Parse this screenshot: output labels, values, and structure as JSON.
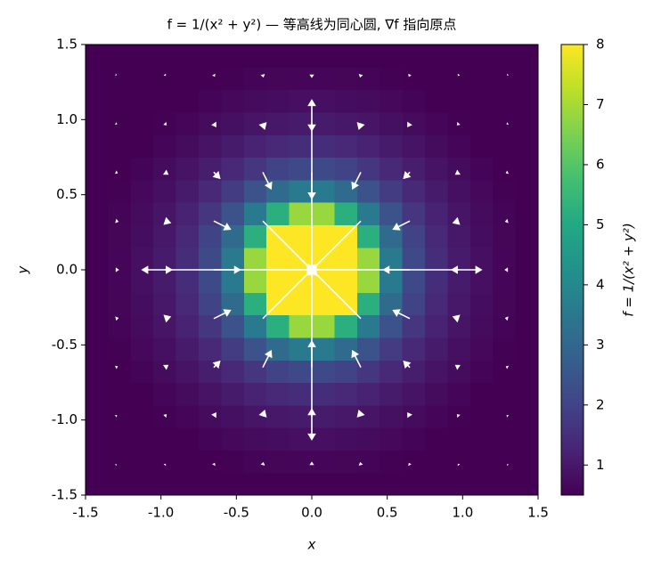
{
  "chart_data": {
    "type": "heatmap",
    "title": "f = 1/(x² + y²) — 等高线为同心圆, ∇f 指向原点",
    "xlabel": "x",
    "ylabel": "y",
    "xlim": [
      -1.5,
      1.5
    ],
    "ylim": [
      -1.5,
      1.5
    ],
    "xticks": [
      -1.5,
      {
        "value": -1,
        "label": "-1.0"
      },
      -0.5,
      {
        "value": 0,
        "label": "0.0"
      },
      0.5,
      {
        "value": 1,
        "label": "1.0"
      },
      1.5
    ],
    "yticks": [
      -1.5,
      {
        "value": -1,
        "label": "-1.0"
      },
      -0.5,
      {
        "value": 0,
        "label": "0.0"
      },
      0.5,
      {
        "value": 1,
        "label": "1.0"
      },
      1.5
    ],
    "colormap": "viridis",
    "clim": [
      0.5,
      8
    ],
    "colorbar_label": "f = 1/(x² + y²)",
    "colorbar_ticks": [
      1,
      2,
      3,
      4,
      5,
      6,
      7,
      8
    ],
    "z": [
      [
        0.25,
        0.27,
        0.3,
        0.34,
        0.37,
        0.4,
        0.43,
        0.46,
        0.48,
        0.49,
        0.49,
        0.48,
        0.46,
        0.43,
        0.4,
        0.37,
        0.34,
        0.3,
        0.27,
        0.25
      ],
      [
        0.27,
        0.31,
        0.35,
        0.39,
        0.43,
        0.48,
        0.53,
        0.57,
        0.6,
        0.61,
        0.61,
        0.6,
        0.57,
        0.53,
        0.48,
        0.43,
        0.39,
        0.35,
        0.31,
        0.27
      ],
      [
        0.3,
        0.35,
        0.4,
        0.45,
        0.51,
        0.58,
        0.65,
        0.71,
        0.76,
        0.79,
        0.79,
        0.76,
        0.71,
        0.65,
        0.58,
        0.51,
        0.45,
        0.4,
        0.35,
        0.3
      ],
      [
        0.34,
        0.39,
        0.45,
        0.53,
        0.61,
        0.71,
        0.82,
        0.92,
        1.0,
        1.05,
        1.05,
        1.0,
        0.92,
        0.82,
        0.71,
        0.61,
        0.53,
        0.45,
        0.39,
        0.34
      ],
      [
        0.37,
        0.43,
        0.51,
        0.61,
        0.73,
        0.88,
        1.05,
        1.22,
        1.37,
        1.46,
        1.46,
        1.37,
        1.22,
        1.05,
        0.88,
        0.73,
        0.61,
        0.51,
        0.43,
        0.37
      ],
      [
        0.4,
        0.48,
        0.58,
        0.71,
        0.88,
        1.1,
        1.37,
        1.68,
        1.98,
        2.17,
        2.17,
        1.98,
        1.68,
        1.37,
        1.1,
        0.88,
        0.71,
        0.58,
        0.48,
        0.4
      ],
      [
        0.43,
        0.53,
        0.65,
        0.82,
        1.05,
        1.37,
        1.81,
        2.4,
        3.07,
        3.56,
        3.56,
        3.07,
        2.4,
        1.81,
        1.37,
        1.05,
        0.82,
        0.65,
        0.53,
        0.43
      ],
      [
        0.46,
        0.57,
        0.71,
        0.92,
        1.22,
        1.68,
        2.4,
        3.56,
        5.23,
        6.84,
        6.84,
        5.23,
        3.56,
        2.4,
        1.68,
        1.22,
        0.92,
        0.71,
        0.57,
        0.46
      ],
      [
        0.48,
        0.6,
        0.76,
        1.0,
        1.37,
        1.98,
        3.07,
        5.23,
        9.88,
        17.78,
        17.78,
        9.88,
        5.23,
        3.07,
        1.98,
        1.37,
        1.0,
        0.76,
        0.6,
        0.48
      ],
      [
        0.49,
        0.61,
        0.79,
        1.05,
        1.46,
        2.17,
        3.56,
        6.84,
        17.78,
        88.89,
        88.89,
        17.78,
        6.84,
        3.56,
        2.17,
        1.46,
        1.05,
        0.79,
        0.61,
        0.49
      ],
      [
        0.49,
        0.61,
        0.79,
        1.05,
        1.46,
        2.17,
        3.56,
        6.84,
        17.78,
        88.89,
        88.89,
        17.78,
        6.84,
        3.56,
        2.17,
        1.46,
        1.05,
        0.79,
        0.61,
        0.49
      ],
      [
        0.48,
        0.6,
        0.76,
        1.0,
        1.37,
        1.98,
        3.07,
        5.23,
        9.88,
        17.78,
        17.78,
        9.88,
        5.23,
        3.07,
        1.98,
        1.37,
        1.0,
        0.76,
        0.6,
        0.48
      ],
      [
        0.46,
        0.57,
        0.71,
        0.92,
        1.22,
        1.68,
        2.4,
        3.56,
        5.23,
        6.84,
        6.84,
        5.23,
        3.56,
        2.4,
        1.68,
        1.22,
        0.92,
        0.71,
        0.57,
        0.46
      ],
      [
        0.43,
        0.53,
        0.65,
        0.82,
        1.05,
        1.37,
        1.81,
        2.4,
        3.07,
        3.56,
        3.56,
        3.07,
        2.4,
        1.81,
        1.37,
        1.05,
        0.82,
        0.65,
        0.53,
        0.43
      ],
      [
        0.4,
        0.48,
        0.58,
        0.71,
        0.88,
        1.1,
        1.37,
        1.68,
        1.98,
        2.17,
        2.17,
        1.98,
        1.68,
        1.37,
        1.1,
        0.88,
        0.71,
        0.58,
        0.48,
        0.4
      ],
      [
        0.37,
        0.43,
        0.51,
        0.61,
        0.73,
        0.88,
        1.05,
        1.22,
        1.37,
        1.46,
        1.46,
        1.37,
        1.22,
        1.05,
        0.88,
        0.73,
        0.61,
        0.51,
        0.43,
        0.37
      ],
      [
        0.34,
        0.39,
        0.45,
        0.53,
        0.61,
        0.71,
        0.82,
        0.92,
        1.0,
        1.05,
        1.05,
        1.0,
        0.92,
        0.82,
        0.71,
        0.61,
        0.53,
        0.45,
        0.39,
        0.34
      ],
      [
        0.3,
        0.35,
        0.4,
        0.45,
        0.51,
        0.58,
        0.65,
        0.71,
        0.76,
        0.79,
        0.79,
        0.76,
        0.71,
        0.65,
        0.58,
        0.51,
        0.45,
        0.4,
        0.35,
        0.3
      ],
      [
        0.27,
        0.31,
        0.35,
        0.39,
        0.43,
        0.48,
        0.53,
        0.57,
        0.6,
        0.61,
        0.61,
        0.6,
        0.57,
        0.53,
        0.48,
        0.43,
        0.39,
        0.35,
        0.31,
        0.27
      ],
      [
        0.25,
        0.27,
        0.3,
        0.34,
        0.37,
        0.4,
        0.43,
        0.46,
        0.48,
        0.49,
        0.49,
        0.48,
        0.46,
        0.43,
        0.4,
        0.37,
        0.34,
        0.3,
        0.27,
        0.25
      ]
    ],
    "quiver": {
      "color": "#ffffff",
      "x": [
        -1.3,
        -0.975,
        -0.65,
        -0.325,
        0,
        0.325,
        0.65,
        0.975,
        1.3
      ],
      "y": [
        -1.3,
        -0.975,
        -0.65,
        -0.325,
        0,
        0.325,
        0.65,
        0.975,
        1.3
      ],
      "u": [
        [
          0.228,
          0.28,
          0.292,
          0.202,
          0,
          -0.202,
          -0.292,
          -0.28,
          -0.228
        ],
        [
          0.37,
          0.54,
          0.69,
          0.583,
          0,
          -0.583,
          -0.69,
          -0.54,
          -0.37
        ],
        [
          0.58,
          1.04,
          1.82,
          2.33,
          0,
          -2.33,
          -1.82,
          -1.04,
          -0.58
        ],
        [
          0.81,
          1.75,
          4.66,
          14.57,
          0,
          -14.57,
          -4.66,
          -1.75,
          -0.81
        ],
        [
          0.91,
          2.16,
          7.28,
          58.26,
          null,
          -58.26,
          -7.28,
          -2.16,
          -0.91
        ],
        [
          0.81,
          1.75,
          4.66,
          14.57,
          0,
          -14.57,
          -4.66,
          -1.75,
          -0.81
        ],
        [
          0.58,
          1.04,
          1.82,
          2.33,
          0,
          -2.33,
          -1.82,
          -1.04,
          -0.58
        ],
        [
          0.37,
          0.54,
          0.69,
          0.583,
          0,
          -0.583,
          -0.69,
          -0.54,
          -0.37
        ],
        [
          0.228,
          0.28,
          0.292,
          0.202,
          0,
          -0.202,
          -0.292,
          -0.28,
          -0.228
        ]
      ],
      "v": [
        [
          0.228,
          0.37,
          0.58,
          0.81,
          0.91,
          0.81,
          0.58,
          0.37,
          0.228
        ],
        [
          0.28,
          0.54,
          1.04,
          1.75,
          2.16,
          1.75,
          1.04,
          0.54,
          0.28
        ],
        [
          0.292,
          0.69,
          1.82,
          4.66,
          7.28,
          4.66,
          1.82,
          0.69,
          0.292
        ],
        [
          0.202,
          0.583,
          2.33,
          14.57,
          58.26,
          14.57,
          2.33,
          0.583,
          0.202
        ],
        [
          0,
          0,
          0,
          0,
          null,
          0,
          0,
          0,
          0
        ],
        [
          -0.202,
          -0.583,
          -2.33,
          -14.57,
          -58.26,
          -14.57,
          -2.33,
          -0.583,
          -0.202
        ],
        [
          -0.292,
          -0.69,
          -1.82,
          -4.66,
          -7.28,
          -4.66,
          -1.82,
          -0.69,
          -0.292
        ],
        [
          -0.28,
          -0.54,
          -1.04,
          -1.75,
          -2.16,
          -1.75,
          -1.04,
          -0.54,
          -0.28
        ],
        [
          -0.228,
          -0.37,
          -0.58,
          -0.81,
          -0.91,
          -0.81,
          -0.58,
          -0.37,
          -0.228
        ]
      ]
    }
  }
}
